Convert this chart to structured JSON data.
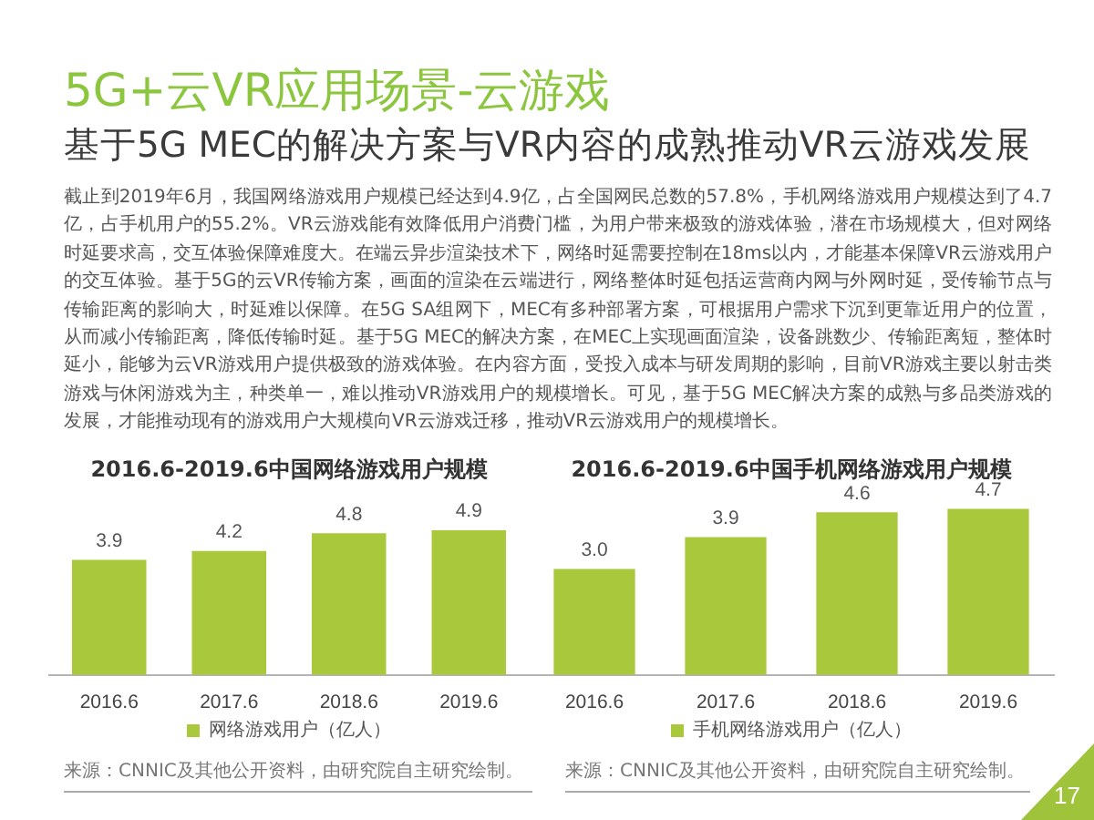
{
  "chart_data": [
    {
      "type": "other",
      "title": "5G+云VR应用场景-云游戏",
      "subtitle": "基于5G MEC的解决方案与VR内容的成熟推动VR云游戏发展",
      "annotations": [
        "截止到2019年6月，我国网络游戏用户规模已经达到4.9亿，占全国网民总数的57.8%，手机网络游戏用户规模达到了4.7亿，占手机用户的55.2%。VR云游戏能有效降低用户消费门槛，为用户带来极致的游戏体验，潜在市场规模大，但对网络时延要求高，交互体验保障难度大。在端云异步渲染技术下，网络时延需要控制在18ms以内，才能基本保障VR云游戏用户的交互体验。基于5G的云VR传输方案，画面的渲染在云端进行，网络整体时延包括运营商内网与外网时延，受传输节点与传输距离的影响大，时延难以保障。在5G SA组网下，MEC有多种部署方案，可根据用户需求下沉到更靠近用户的位置，从而减小传输距离，降低传输时延。基于5G MEC的解决方案，在MEC上实现画面渲染，设备跳数少、传输距离短，整体时延小，能够为云VR游戏用户提供极致的游戏体验。在内容方面，受投入成本与研发周期的影响，目前VR游戏主要以射击类游戏与休闲游戏为主，种类单一，难以推动VR游戏用户的规模增长。可见，基于5G MEC解决方案的成熟与多品类游戏的发展，才能推动现有的游戏用户大规模向VR云游戏迁移，推动VR云游戏用户的规模增长。",
        "17"
      ]
    },
    {
      "type": "bar",
      "title": "2016.6-2019.6中国网络游戏用户规模",
      "categories": [
        "2016.6",
        "2017.6",
        "2018.6",
        "2019.6"
      ],
      "series": [
        {
          "name": "网络游戏用户（亿人）",
          "color": "#a9c83b",
          "values": [
            3.9,
            4.2,
            4.8,
            4.9
          ]
        }
      ],
      "data_labels": true,
      "legend": "bottom",
      "tick_labels": "x",
      "annotations": [
        "来源：CNNIC及其他公开资料，由研究院自主研究绘制。"
      ]
    },
    {
      "type": "bar",
      "title": "2016.6-2019.6中国手机网络游戏用户规模",
      "categories": [
        "2016.6",
        "2017.6",
        "2018.6",
        "2019.6"
      ],
      "series": [
        {
          "name": "手机网络游戏用户（亿人）",
          "color": "#a9c83b",
          "values": [
            3.0,
            3.9,
            4.6,
            4.7
          ],
          "value_labels": [
            "3.0",
            "3.9",
            "4.6",
            "4.7"
          ]
        }
      ],
      "legend": "bottom",
      "tick_labels": "x",
      "annotations": [
        "来源：CNNIC及其他公开资料，由研究院自主研究绘制。"
      ]
    }
  ]
}
